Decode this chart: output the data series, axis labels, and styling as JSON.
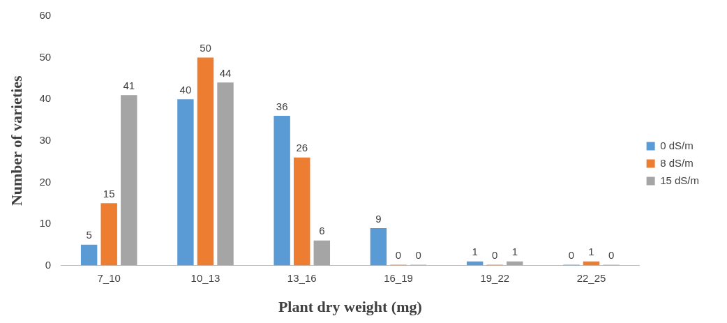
{
  "chart_data": {
    "type": "bar",
    "xlabel": "Plant dry weight (mg)",
    "ylabel": "Number of varieties",
    "categories": [
      "7_10",
      "10_13",
      "13_16",
      "16_19",
      "19_22",
      "22_25"
    ],
    "series": [
      {
        "name": "0 dS/m",
        "color": "#5b9bd5",
        "values": [
          5,
          40,
          36,
          9,
          1,
          0
        ]
      },
      {
        "name": "8 dS/m",
        "color": "#ed7d31",
        "values": [
          15,
          50,
          26,
          0,
          0,
          1
        ]
      },
      {
        "name": "15 dS/m",
        "color": "#a5a5a5",
        "values": [
          41,
          44,
          6,
          0,
          1,
          0
        ]
      }
    ],
    "ylim": [
      0,
      60
    ],
    "yticks": [
      0,
      10,
      20,
      30,
      40,
      50,
      60
    ],
    "grid": false,
    "legend": "right",
    "data_labels": true
  }
}
